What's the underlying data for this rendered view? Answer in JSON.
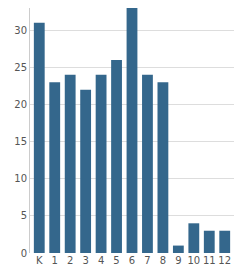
{
  "chart_data": {
    "type": "bar",
    "categories": [
      "K",
      "1",
      "2",
      "3",
      "4",
      "5",
      "6",
      "7",
      "8",
      "9",
      "10",
      "11",
      "12"
    ],
    "values": [
      31,
      23,
      24,
      22,
      24,
      26,
      33,
      24,
      23,
      1,
      4,
      3,
      3
    ],
    "color": "#34678c",
    "ylim": [
      0,
      33
    ],
    "yticks": [
      0,
      5,
      10,
      15,
      20,
      25,
      30
    ],
    "grid": true
  }
}
